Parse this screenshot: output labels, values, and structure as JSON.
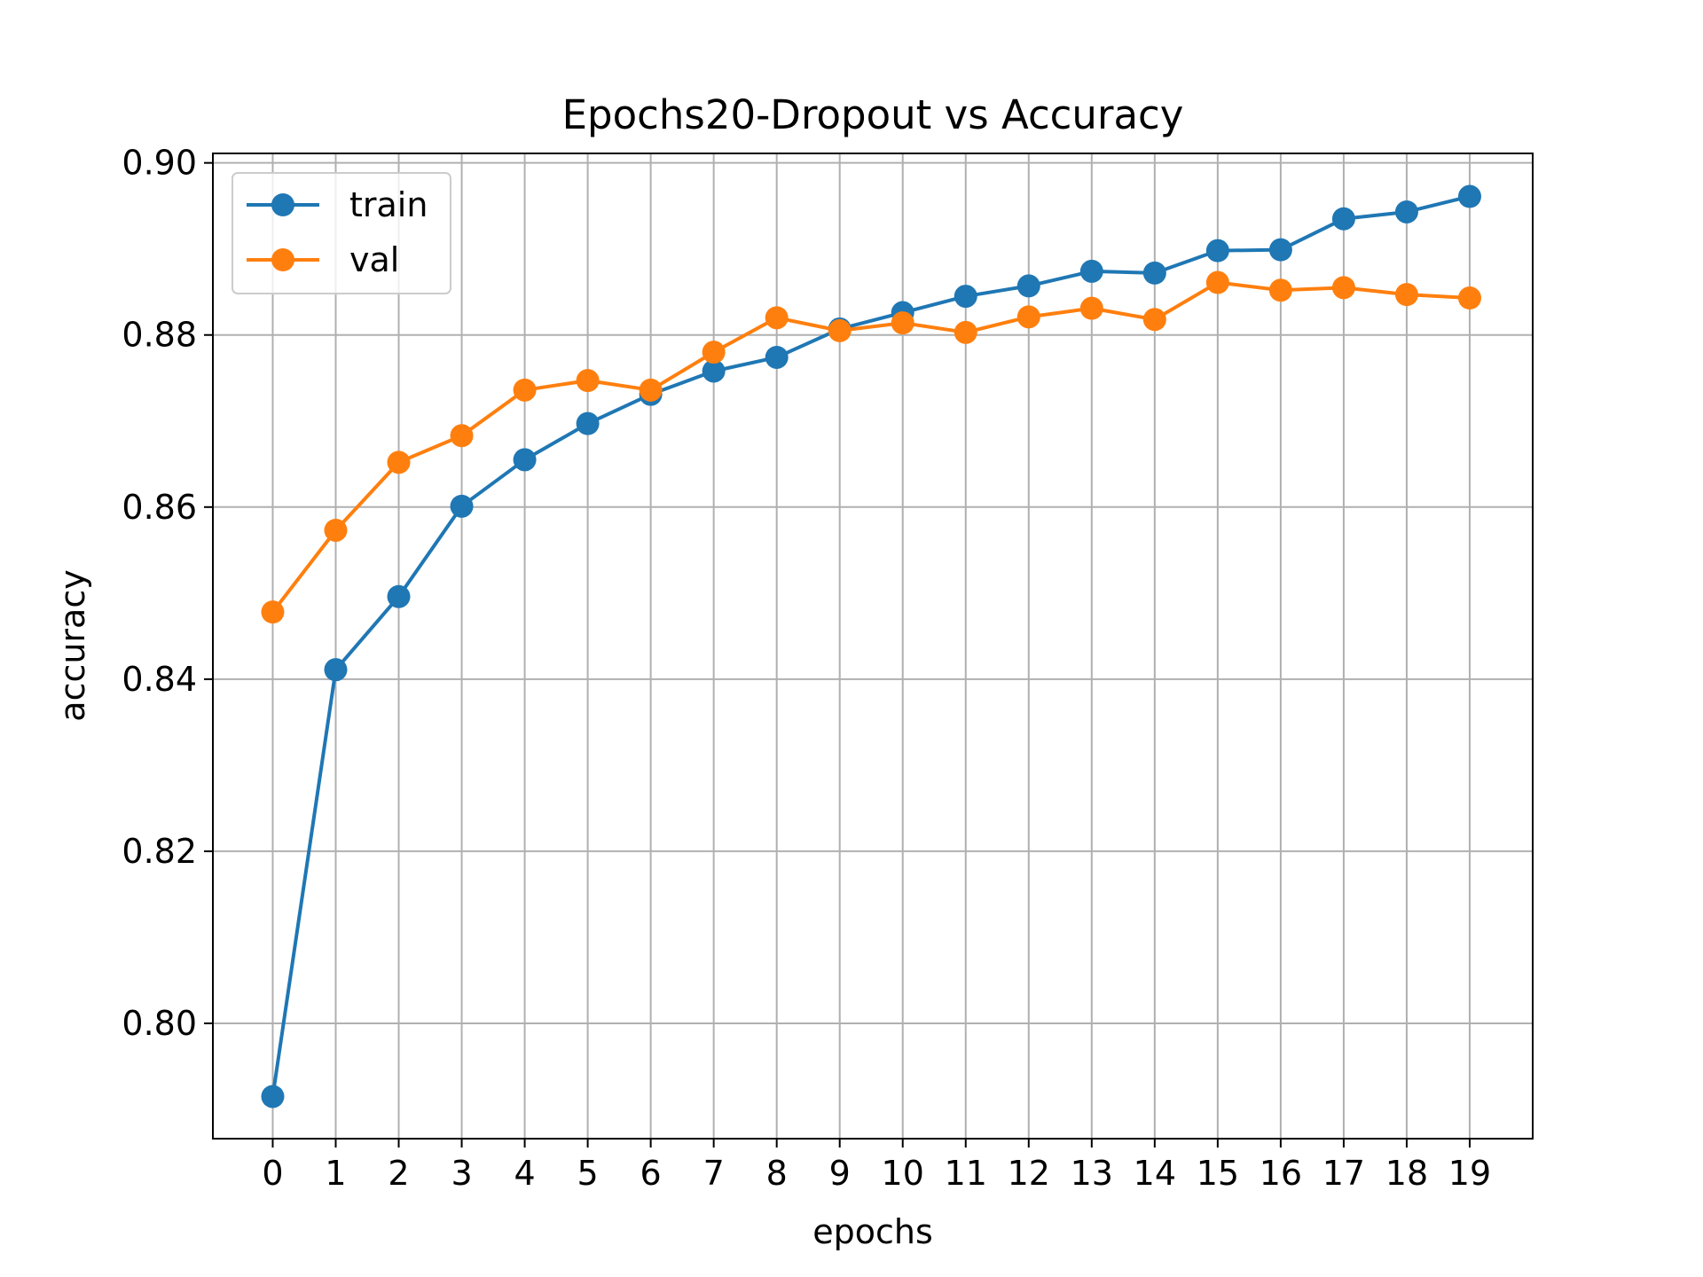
{
  "chart_data": {
    "type": "line",
    "title": "Epochs20-Dropout vs Accuracy",
    "xlabel": "epochs",
    "ylabel": "accuracy",
    "x": [
      0,
      1,
      2,
      3,
      4,
      5,
      6,
      7,
      8,
      9,
      10,
      11,
      12,
      13,
      14,
      15,
      16,
      17,
      18,
      19
    ],
    "x_tick_labels": [
      "0",
      "1",
      "2",
      "3",
      "4",
      "5",
      "6",
      "7",
      "8",
      "9",
      "10",
      "11",
      "12",
      "13",
      "14",
      "15",
      "16",
      "17",
      "18",
      "19"
    ],
    "y_tick_values": [
      0.8,
      0.82,
      0.84,
      0.86,
      0.88,
      0.9
    ],
    "y_tick_labels": [
      "0.80",
      "0.82",
      "0.84",
      "0.86",
      "0.88",
      "0.90"
    ],
    "xlim": [
      -0.95,
      20.0
    ],
    "ylim": [
      0.7866,
      0.9011
    ],
    "grid": true,
    "legend_position": "upper-left",
    "series": [
      {
        "name": "train",
        "color": "#1f77b4",
        "values": [
          0.7915,
          0.8411,
          0.8496,
          0.8601,
          0.8655,
          0.8697,
          0.8731,
          0.8758,
          0.8774,
          0.8807,
          0.8826,
          0.8845,
          0.8857,
          0.8874,
          0.8872,
          0.8898,
          0.8899,
          0.8935,
          0.8943,
          0.8961
        ]
      },
      {
        "name": "val",
        "color": "#ff7f0e",
        "values": [
          0.8478,
          0.8573,
          0.8652,
          0.8683,
          0.8736,
          0.8747,
          0.8736,
          0.878,
          0.882,
          0.8805,
          0.8814,
          0.8803,
          0.8821,
          0.8831,
          0.8818,
          0.8861,
          0.8852,
          0.8855,
          0.8847,
          0.8843
        ]
      }
    ]
  }
}
